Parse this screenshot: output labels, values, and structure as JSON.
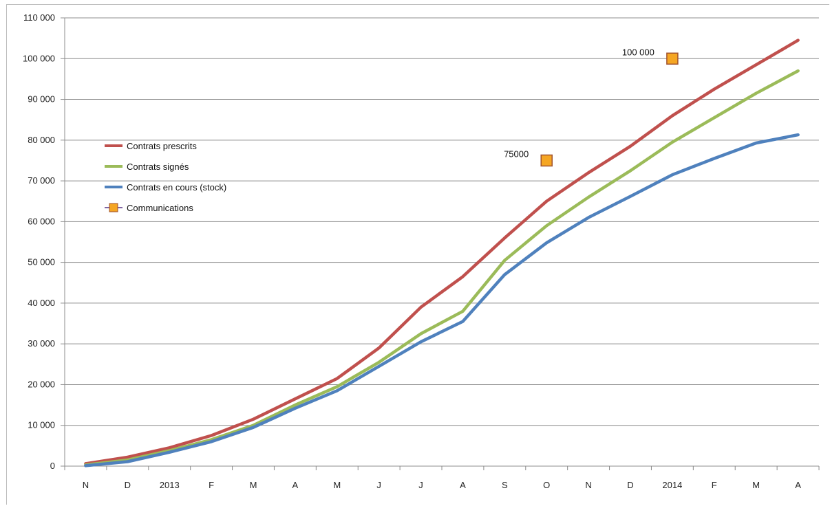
{
  "page_title": "",
  "chart_data": {
    "type": "line",
    "title": "",
    "xlabel": "",
    "ylabel": "",
    "categories": [
      "N",
      "D",
      "2013",
      "F",
      "M",
      "A",
      "M",
      "J",
      "J",
      "A",
      "S",
      "O",
      "N",
      "D",
      "2014",
      "F",
      "M",
      "A"
    ],
    "y_tick_labels": [
      "0",
      "10 000",
      "20 000",
      "30 000",
      "40 000",
      "50 000",
      "60 000",
      "70 000",
      "80 000",
      "90 000",
      "100 000",
      "110 000"
    ],
    "ylim": [
      0,
      110000
    ],
    "grid": true,
    "legend_position": "left",
    "series": [
      {
        "name": "Contrats prescrits",
        "color": "#c0504d",
        "values": [
          600,
          2200,
          4500,
          7500,
          11500,
          16500,
          21500,
          29000,
          39000,
          46500,
          56000,
          65000,
          72000,
          78500,
          86000,
          92500,
          98500,
          104500
        ]
      },
      {
        "name": "Contrats signés",
        "color": "#9bbb59",
        "values": [
          300,
          1500,
          3800,
          6500,
          10000,
          15000,
          19500,
          25500,
          32500,
          38000,
          50500,
          59000,
          66000,
          72500,
          79500,
          85500,
          91500,
          97000
        ]
      },
      {
        "name": "Contrats en cours (stock)",
        "color": "#4f81bd",
        "values": [
          100,
          1100,
          3400,
          6000,
          9500,
          14200,
          18500,
          24500,
          30500,
          35500,
          47000,
          54800,
          61000,
          66200,
          71500,
          75500,
          79300,
          81300
        ]
      }
    ],
    "markers": {
      "name": "Communications",
      "color": "#f5a623",
      "line_color": "#8064a2",
      "points": [
        {
          "category_index": 11,
          "value": 75000,
          "label": "75000"
        },
        {
          "category_index": 14,
          "value": 100000,
          "label": "100 000"
        }
      ]
    }
  }
}
